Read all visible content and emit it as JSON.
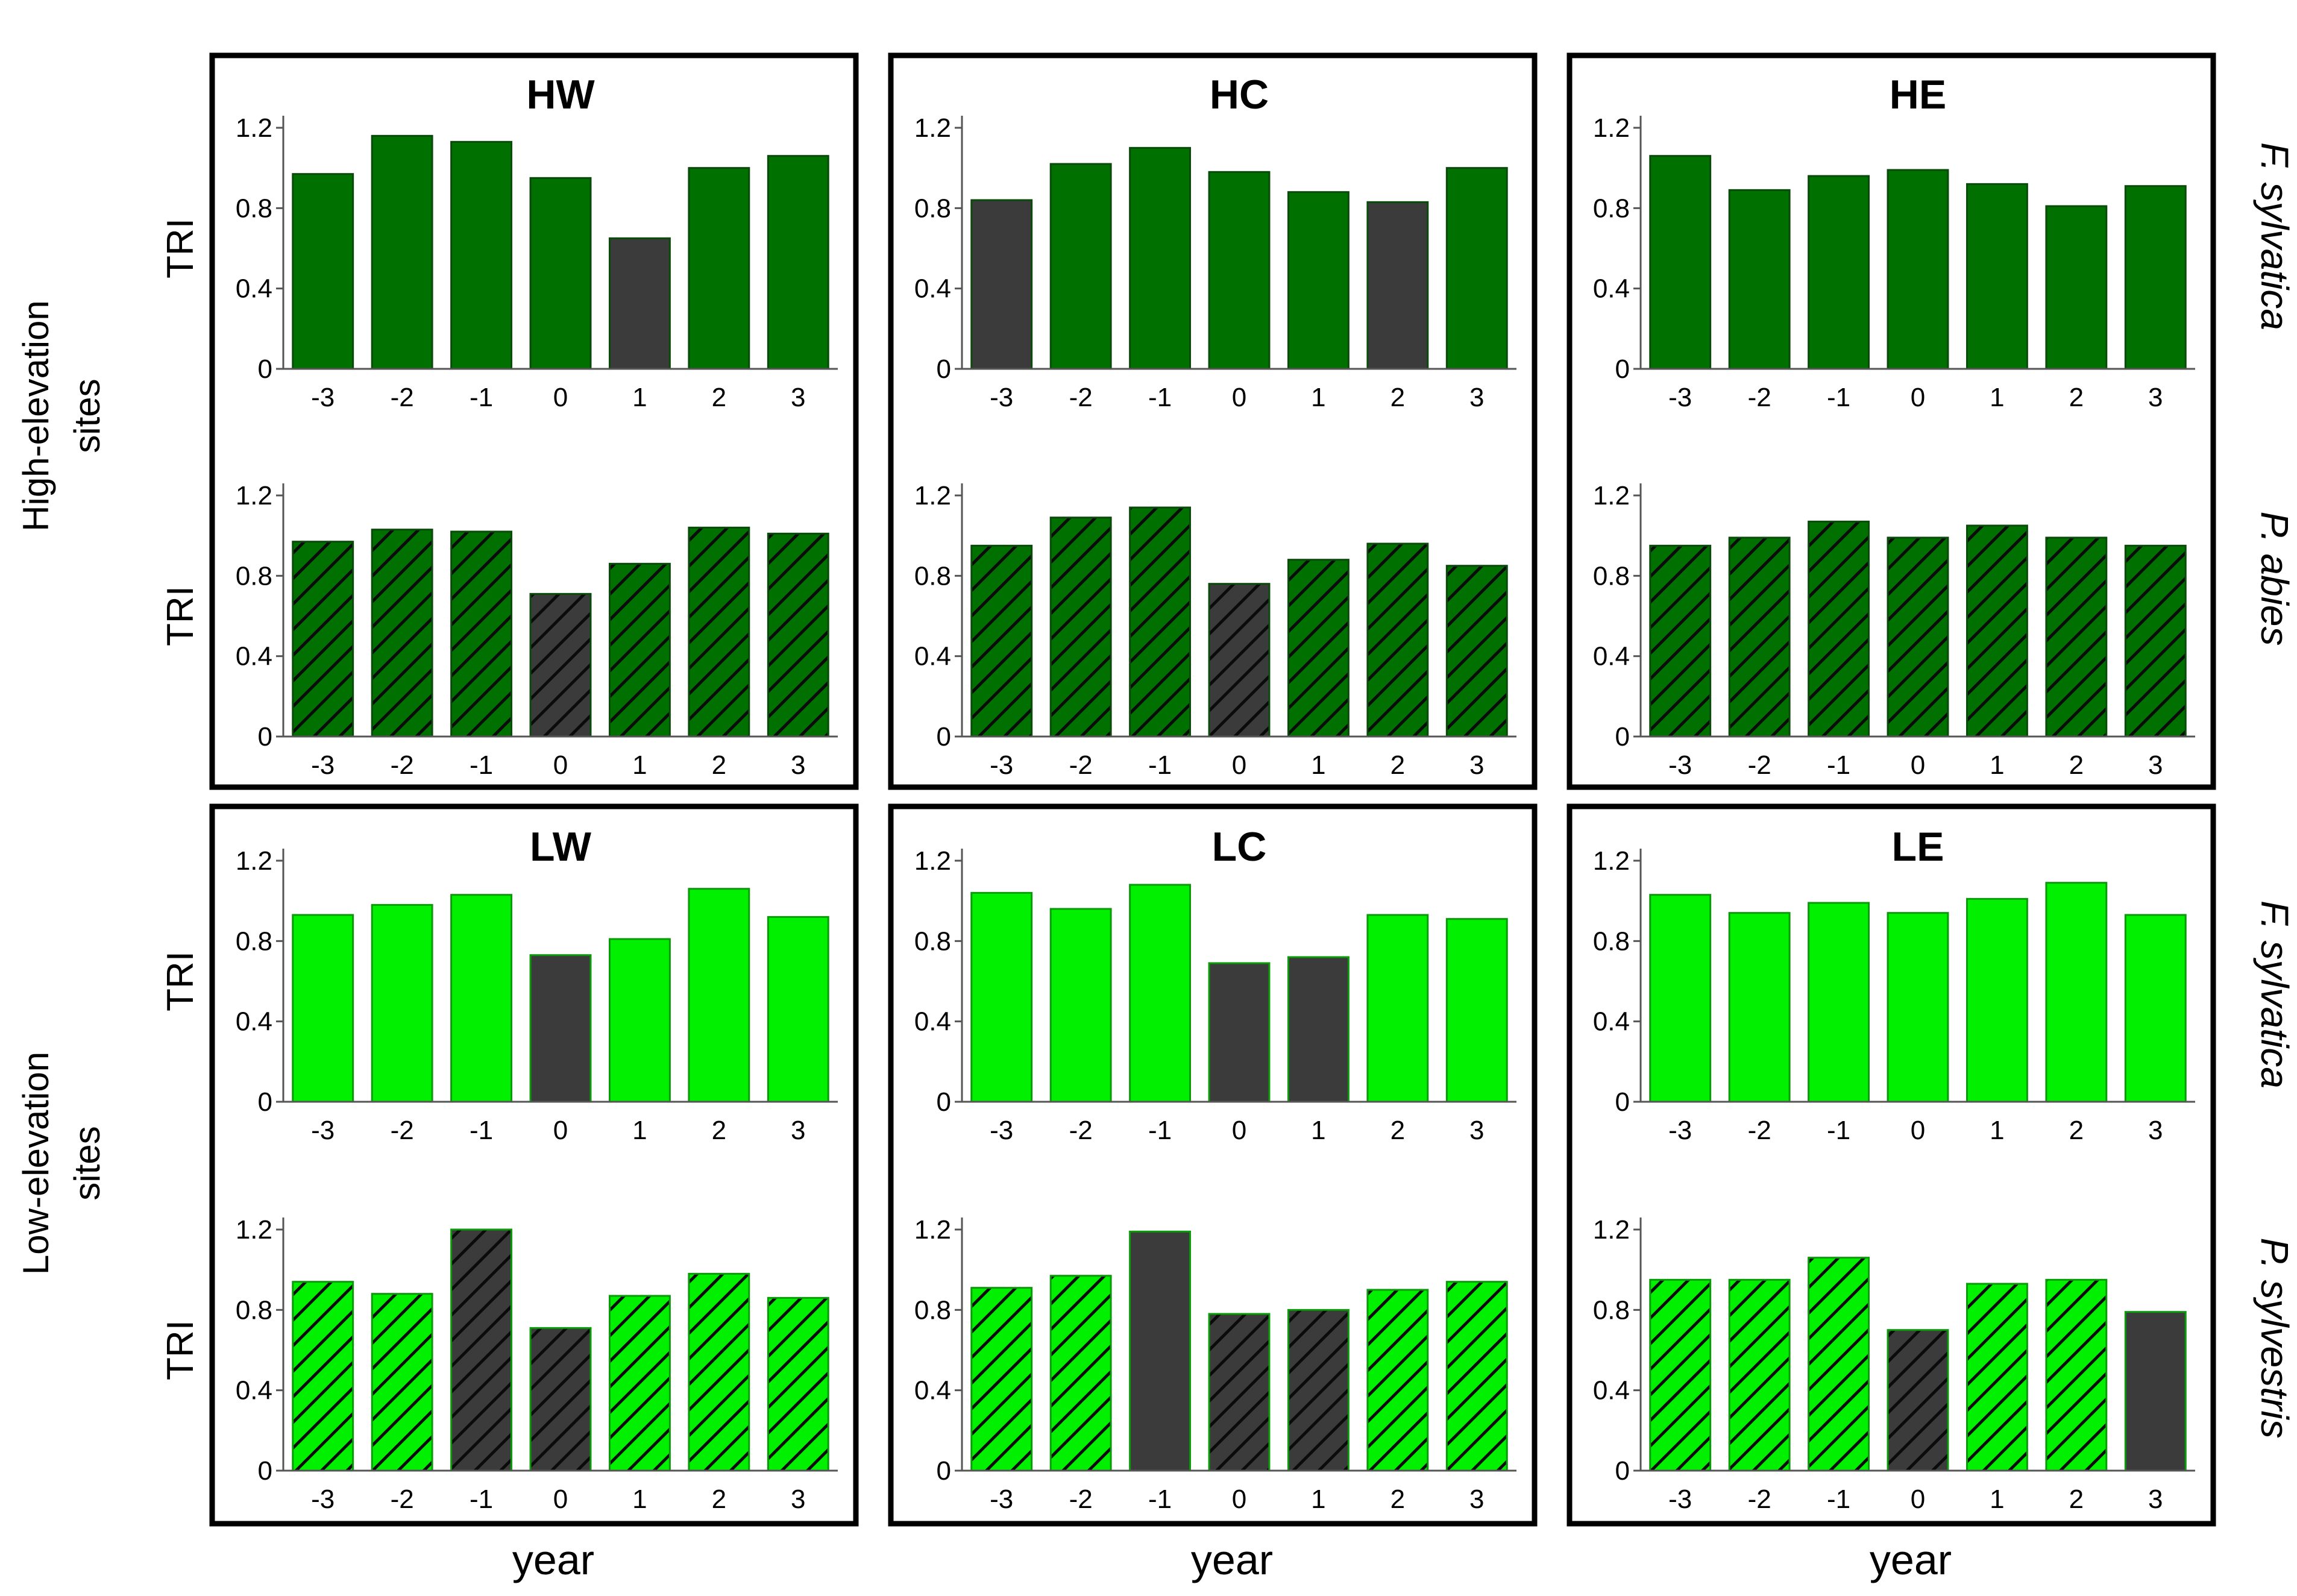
{
  "colors": {
    "high": "#007000",
    "low": "#00f000",
    "dark": "#3b3b3b",
    "hatch": "#0b0b0b"
  },
  "row_labels": {
    "high": [
      "High-elevation",
      "sites"
    ],
    "low": [
      "Low-elevation",
      "sites"
    ]
  },
  "species": {
    "f": "F. sylvatica",
    "p_high": "P. abies",
    "p_low": "P. sylvestris"
  },
  "xlabel": "year",
  "chart_data": [
    {
      "type": "bar",
      "panel": "HW",
      "title": "HW",
      "ylabel": "TRI",
      "species": "F. sylvatica",
      "categories": [
        "-3",
        "-2",
        "-1",
        "0",
        "1",
        "2",
        "3"
      ],
      "values": [
        0.97,
        1.16,
        1.13,
        0.95,
        0.65,
        1.0,
        1.06
      ],
      "highlight": [
        false,
        false,
        false,
        false,
        true,
        false,
        false
      ],
      "ylim": [
        0,
        1.2
      ],
      "yticks": [
        "0",
        "0.4",
        "0.8",
        "1.2"
      ],
      "color": "high",
      "hatched": false
    },
    {
      "type": "bar",
      "panel": "HW",
      "title": "",
      "ylabel": "TRI",
      "species": "P. abies",
      "categories": [
        "-3",
        "-2",
        "-1",
        "0",
        "1",
        "2",
        "3"
      ],
      "values": [
        0.97,
        1.03,
        1.02,
        0.71,
        0.86,
        1.04,
        1.01
      ],
      "highlight": [
        false,
        false,
        false,
        true,
        false,
        false,
        false
      ],
      "ylim": [
        0,
        1.2
      ],
      "yticks": [
        "0",
        "0.4",
        "0.8",
        "1.2"
      ],
      "color": "high",
      "hatched": true
    },
    {
      "type": "bar",
      "panel": "HC",
      "title": "HC",
      "ylabel": "",
      "species": "F. sylvatica",
      "categories": [
        "-3",
        "-2",
        "-1",
        "0",
        "1",
        "2",
        "3"
      ],
      "values": [
        0.84,
        1.02,
        1.1,
        0.98,
        0.88,
        0.83,
        1.0
      ],
      "highlight": [
        true,
        false,
        false,
        false,
        false,
        true,
        false
      ],
      "ylim": [
        0,
        1.2
      ],
      "yticks": [
        "0",
        "0.4",
        "0.8",
        "1.2"
      ],
      "color": "high",
      "hatched": false
    },
    {
      "type": "bar",
      "panel": "HC",
      "title": "",
      "ylabel": "",
      "species": "P. abies",
      "categories": [
        "-3",
        "-2",
        "-1",
        "0",
        "1",
        "2",
        "3"
      ],
      "values": [
        0.95,
        1.09,
        1.14,
        0.76,
        0.88,
        0.96,
        0.85
      ],
      "highlight": [
        false,
        false,
        false,
        true,
        false,
        false,
        false
      ],
      "ylim": [
        0,
        1.2
      ],
      "yticks": [
        "0",
        "0.4",
        "0.8",
        "1.2"
      ],
      "color": "high",
      "hatched": true
    },
    {
      "type": "bar",
      "panel": "HE",
      "title": "HE",
      "ylabel": "",
      "species": "F. sylvatica",
      "categories": [
        "-3",
        "-2",
        "-1",
        "0",
        "1",
        "2",
        "3"
      ],
      "values": [
        1.06,
        0.89,
        0.96,
        0.99,
        0.92,
        0.81,
        0.91
      ],
      "highlight": [
        false,
        false,
        false,
        false,
        false,
        false,
        false
      ],
      "ylim": [
        0,
        1.2
      ],
      "yticks": [
        "0",
        "0.4",
        "0.8",
        "1.2"
      ],
      "color": "high",
      "hatched": false
    },
    {
      "type": "bar",
      "panel": "HE",
      "title": "",
      "ylabel": "",
      "species": "P. abies",
      "categories": [
        "-3",
        "-2",
        "-1",
        "0",
        "1",
        "2",
        "3"
      ],
      "values": [
        0.95,
        0.99,
        1.07,
        0.99,
        1.05,
        0.99,
        0.95
      ],
      "highlight": [
        false,
        false,
        false,
        false,
        false,
        false,
        false
      ],
      "ylim": [
        0,
        1.2
      ],
      "yticks": [
        "0",
        "0.4",
        "0.8",
        "1.2"
      ],
      "color": "high",
      "hatched": true
    },
    {
      "type": "bar",
      "panel": "LW",
      "title": "LW",
      "ylabel": "TRI",
      "species": "F. sylvatica",
      "categories": [
        "-3",
        "-2",
        "-1",
        "0",
        "1",
        "2",
        "3"
      ],
      "values": [
        0.93,
        0.98,
        1.03,
        0.73,
        0.81,
        1.06,
        0.92
      ],
      "highlight": [
        false,
        false,
        false,
        true,
        false,
        false,
        false
      ],
      "ylim": [
        0,
        1.2
      ],
      "yticks": [
        "0",
        "0.4",
        "0.8",
        "1.2"
      ],
      "color": "low",
      "hatched": false
    },
    {
      "type": "bar",
      "panel": "LW",
      "title": "",
      "ylabel": "TRI",
      "species": "P. sylvestris",
      "categories": [
        "-3",
        "-2",
        "-1",
        "0",
        "1",
        "2",
        "3"
      ],
      "values": [
        0.94,
        0.88,
        1.2,
        0.71,
        0.87,
        0.98,
        0.86
      ],
      "highlight": [
        false,
        false,
        true,
        true,
        false,
        false,
        false
      ],
      "ylim": [
        0,
        1.2
      ],
      "yticks": [
        "0",
        "0.4",
        "0.8",
        "1.2"
      ],
      "color": "low",
      "hatched": true
    },
    {
      "type": "bar",
      "panel": "LC",
      "title": "LC",
      "ylabel": "",
      "species": "F. sylvatica",
      "categories": [
        "-3",
        "-2",
        "-1",
        "0",
        "1",
        "2",
        "3"
      ],
      "values": [
        1.04,
        0.96,
        1.08,
        0.69,
        0.72,
        0.93,
        0.91
      ],
      "highlight": [
        false,
        false,
        false,
        true,
        true,
        false,
        false
      ],
      "ylim": [
        0,
        1.2
      ],
      "yticks": [
        "0",
        "0.4",
        "0.8",
        "1.2"
      ],
      "color": "low",
      "hatched": false
    },
    {
      "type": "bar",
      "panel": "LC",
      "title": "",
      "ylabel": "",
      "species": "P. sylvestris",
      "categories": [
        "-3",
        "-2",
        "-1",
        "0",
        "1",
        "2",
        "3"
      ],
      "values": [
        0.91,
        0.97,
        1.19,
        0.78,
        0.8,
        0.9,
        0.94
      ],
      "highlight": [
        false,
        false,
        true,
        true,
        true,
        false,
        false
      ],
      "solid": [
        false,
        false,
        true,
        false,
        false,
        false,
        false
      ],
      "ylim": [
        0,
        1.2
      ],
      "yticks": [
        "0",
        "0.4",
        "0.8",
        "1.2"
      ],
      "color": "low",
      "hatched": true
    },
    {
      "type": "bar",
      "panel": "LE",
      "title": "LE",
      "ylabel": "",
      "species": "F. sylvatica",
      "categories": [
        "-3",
        "-2",
        "-1",
        "0",
        "1",
        "2",
        "3"
      ],
      "values": [
        1.03,
        0.94,
        0.99,
        0.94,
        1.01,
        1.09,
        0.93
      ],
      "highlight": [
        false,
        false,
        false,
        false,
        false,
        false,
        false
      ],
      "ylim": [
        0,
        1.2
      ],
      "yticks": [
        "0",
        "0.4",
        "0.8",
        "1.2"
      ],
      "color": "low",
      "hatched": false
    },
    {
      "type": "bar",
      "panel": "LE",
      "title": "",
      "ylabel": "",
      "species": "P. sylvestris",
      "categories": [
        "-3",
        "-2",
        "-1",
        "0",
        "1",
        "2",
        "3"
      ],
      "values": [
        0.95,
        0.95,
        1.06,
        0.7,
        0.93,
        0.95,
        0.79
      ],
      "highlight": [
        false,
        false,
        false,
        true,
        false,
        false,
        true
      ],
      "solid": [
        false,
        false,
        false,
        false,
        false,
        false,
        true
      ],
      "ylim": [
        0,
        1.2
      ],
      "yticks": [
        "0",
        "0.4",
        "0.8",
        "1.2"
      ],
      "color": "low",
      "hatched": true
    }
  ]
}
